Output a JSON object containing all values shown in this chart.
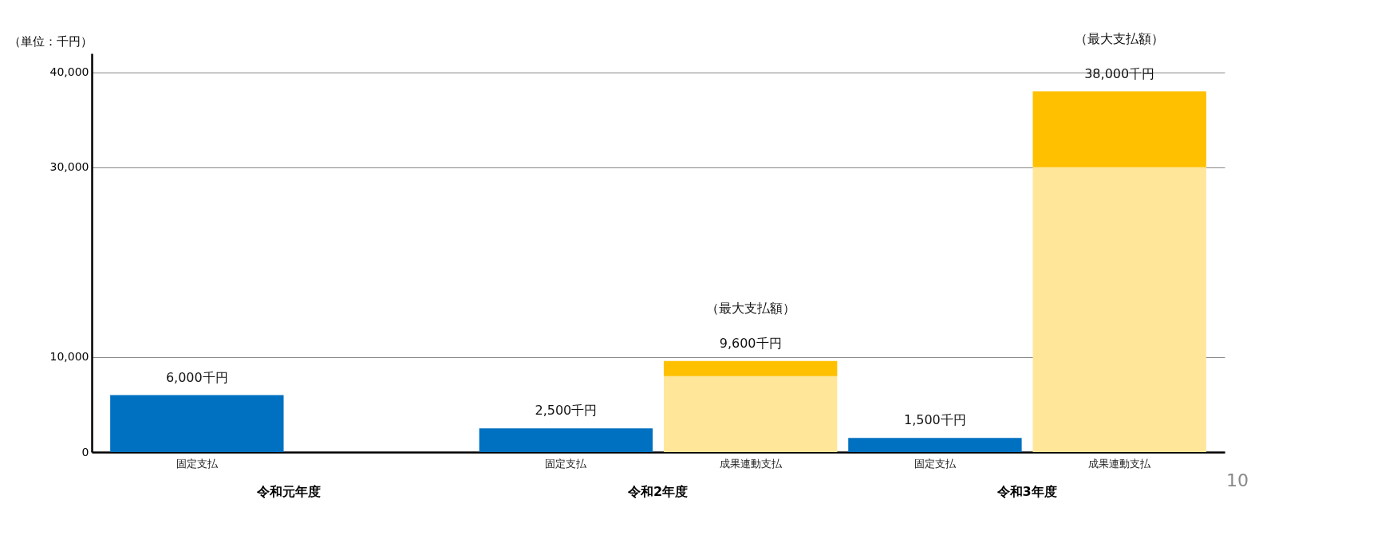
{
  "chart_data": {
    "type": "bar",
    "stacked": true,
    "ylabel": "（単位：千円）",
    "categories": [
      "固定支払",
      null,
      "固定支払",
      "成果連動支払",
      "固定支払",
      "成果連動支払"
    ],
    "ylim": [
      0,
      42000
    ],
    "yticks": [
      0,
      {
        "value": 10000,
        "label": "10,000"
      },
      {
        "value": 30000,
        "label": "30,000"
      },
      {
        "value": 40000,
        "label": "40,000"
      }
    ],
    "grid": "y",
    "annotations": [
      "令和元年度",
      "令和2年度",
      "令和3年度",
      "10"
    ],
    "totals": [
      "6,000千円",
      null,
      "2,500千円",
      "（最大支払額）\n9,600千円",
      "1,500千円",
      "（最大支払額）\n38,000千円"
    ],
    "series": [
      {
        "color": "#0070c0",
        "values": [
          6000,
          null,
          2500,
          null,
          1500,
          null
        ]
      },
      {
        "color": "#ffe699",
        "values": [
          null,
          null,
          null,
          8000,
          null,
          30000
        ]
      },
      {
        "color": "#ffc000",
        "values": [
          null,
          null,
          null,
          1600,
          null,
          8000
        ]
      }
    ]
  }
}
